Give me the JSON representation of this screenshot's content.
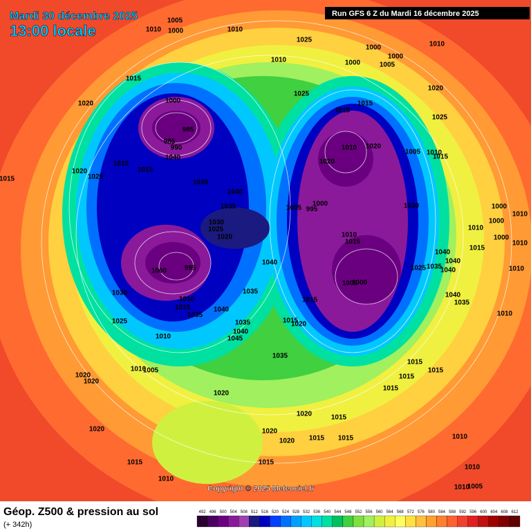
{
  "header": {
    "date": "Mardi 30 décembre 2025",
    "time": "13:00 locale",
    "run": "Run GFS 6 Z du Mardi 16 décembre 2025"
  },
  "footer": {
    "title": "Géop. Z500 & pression au sol",
    "lead": "(+ 342h)",
    "copyright": "Copyright © 2025 Meteociel.fr"
  },
  "colorbar": {
    "ticks": [
      492,
      496,
      500,
      504,
      508,
      512,
      516,
      520,
      524,
      528,
      532,
      536,
      540,
      544,
      548,
      552,
      556,
      560,
      564,
      568,
      572,
      576,
      580,
      584,
      588,
      592,
      596,
      600,
      604,
      608,
      612
    ],
    "colors": [
      "#2a0030",
      "#4a0060",
      "#6a0080",
      "#8b1a9b",
      "#a040b0",
      "#1a1a80",
      "#0000c0",
      "#0040ff",
      "#0070ff",
      "#00a0ff",
      "#00c8ff",
      "#00e0e0",
      "#00e0a0",
      "#00c060",
      "#40d040",
      "#80e040",
      "#a0f060",
      "#d0f040",
      "#f0f040",
      "#ffff60",
      "#ffe040",
      "#ffc040",
      "#ffa030",
      "#ff8030",
      "#ff6030",
      "#f04030",
      "#e02020",
      "#c01010",
      "#a00000",
      "#800000",
      "#600000"
    ]
  },
  "pressure_labels": [
    1005,
    1010,
    1000,
    1010,
    1025,
    1010,
    1000,
    1000,
    1000,
    1005,
    1010,
    1015,
    1020,
    1000,
    1025,
    1020,
    1015,
    1015,
    985,
    985,
    990,
    1040,
    1010,
    1015,
    1020,
    1025,
    1015,
    1025,
    1010,
    1020,
    1020,
    1005,
    1010,
    1015,
    1035,
    1040,
    1035,
    1000,
    1005,
    995,
    1030,
    1000,
    1010,
    1030,
    1025,
    1020,
    1010,
    1015,
    1010,
    1000,
    1000,
    1010,
    1015,
    1040,
    1000,
    995,
    1040,
    1040,
    1025,
    1035,
    1040,
    1010,
    1000,
    1005,
    1035,
    1030,
    1010,
    1015,
    1015,
    1040,
    1035,
    1040,
    1035,
    1035,
    1015,
    1020,
    1010,
    1025,
    1040,
    1045,
    1010,
    1035,
    1015,
    1015,
    1015,
    1010,
    1005,
    1020,
    1020,
    1015,
    1020,
    1020,
    1015,
    1020,
    1020,
    1020,
    1015,
    1015,
    1010,
    1015,
    1015,
    1010,
    1010,
    1010,
    1005
  ]
}
